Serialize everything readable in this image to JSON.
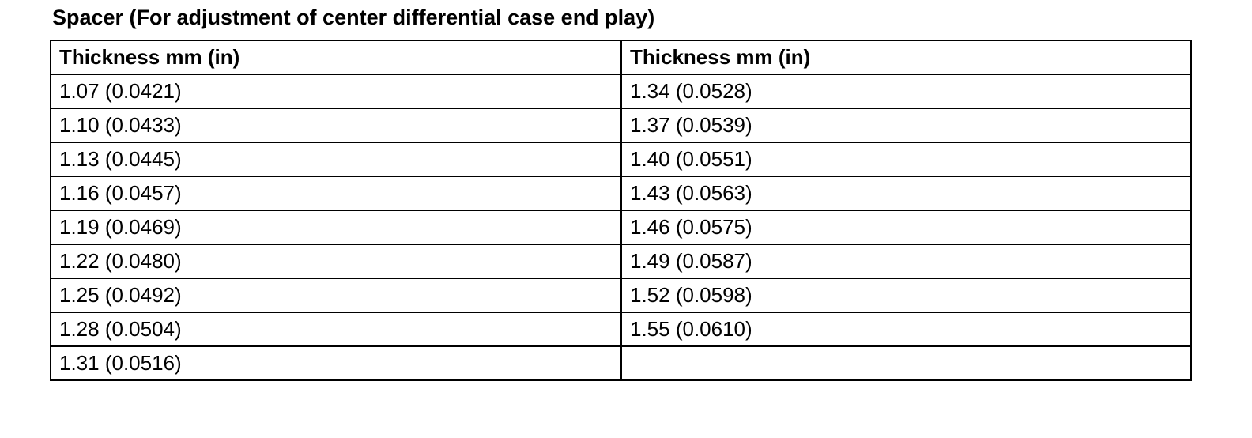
{
  "title": "Spacer (For adjustment of center differential case end play)",
  "table": {
    "header": [
      "Thickness mm (in)",
      "Thickness mm (in)"
    ],
    "rows": [
      [
        "1.07 (0.0421)",
        "1.34 (0.0528)"
      ],
      [
        "1.10 (0.0433)",
        "1.37 (0.0539)"
      ],
      [
        "1.13 (0.0445)",
        "1.40 (0.0551)"
      ],
      [
        "1.16 (0.0457)",
        "1.43 (0.0563)"
      ],
      [
        "1.19 (0.0469)",
        "1.46 (0.0575)"
      ],
      [
        "1.22 (0.0480)",
        "1.49 (0.0587)"
      ],
      [
        "1.25 (0.0492)",
        "1.52 (0.0598)"
      ],
      [
        "1.28 (0.0504)",
        "1.55 (0.0610)"
      ],
      [
        "1.31 (0.0516)"
      ]
    ]
  }
}
